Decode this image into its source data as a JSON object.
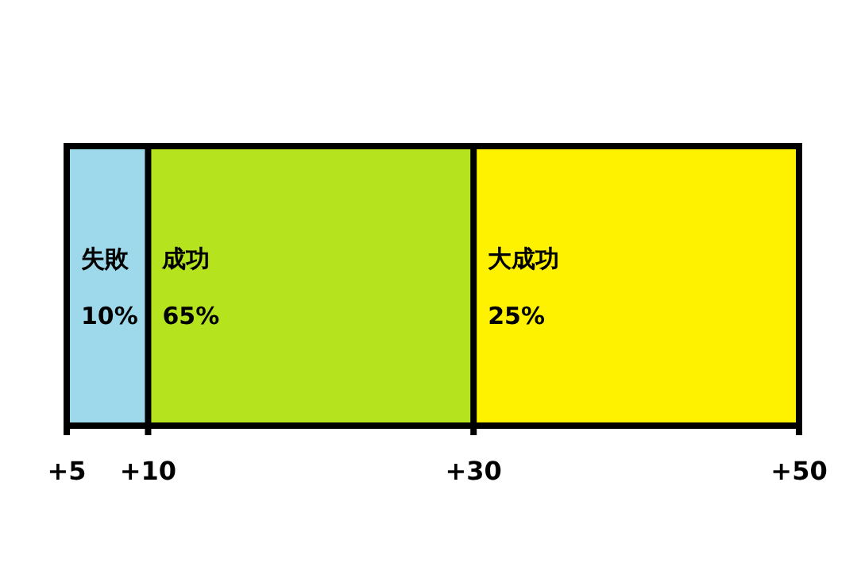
{
  "chart_data": {
    "type": "bar",
    "orientation": "horizontal",
    "categories": [
      null
    ],
    "series": [
      {
        "name": "失敗",
        "color": "#9dd9ea",
        "values": [
          5
        ],
        "base": [
          5
        ]
      },
      {
        "name": "成功",
        "color": "#b5e31e",
        "values": [
          20
        ],
        "base": [
          10
        ]
      },
      {
        "name": "大成功",
        "color": "#fff200",
        "values": [
          20
        ],
        "base": [
          30
        ]
      }
    ],
    "annotations": [
      "10%",
      "65%",
      "25%"
    ],
    "xlim": [
      5,
      50
    ],
    "xticks": [
      {
        "value": 5,
        "label": "+5"
      },
      {
        "value": 10,
        "label": "+10"
      },
      {
        "value": 30,
        "label": "+30"
      },
      {
        "value": 50,
        "label": "+50"
      }
    ]
  }
}
